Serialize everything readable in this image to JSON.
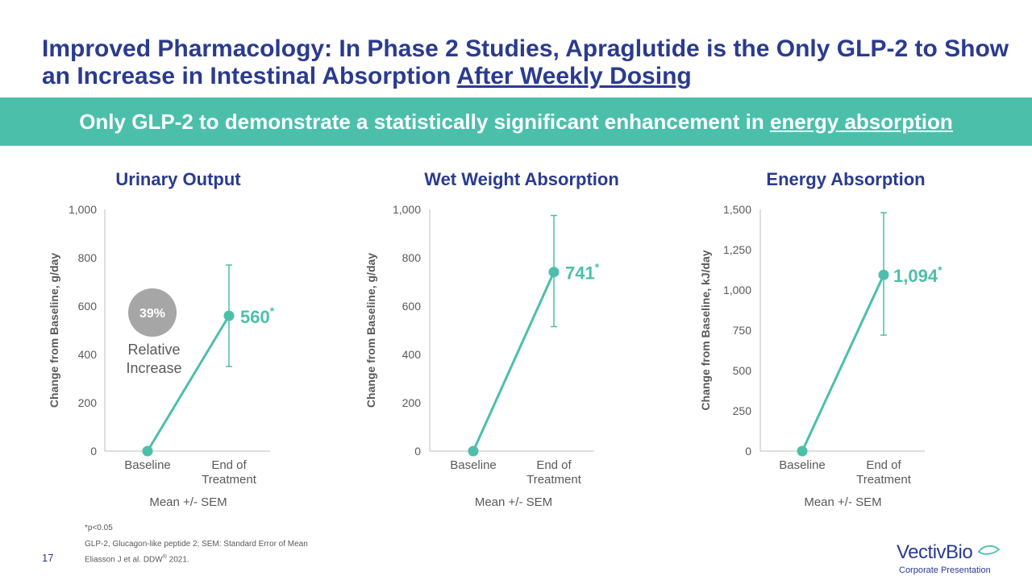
{
  "slide": {
    "title_main": "Improved Pharmacology: In Phase 2 Studies, Apraglutide is the Only GLP-2 to Show an Increase in Intestinal Absorption ",
    "title_underlined": "After Weekly Dosing",
    "banner_main": "Only GLP-2 to demonstrate a statistically significant enhancement in ",
    "banner_underlined": "energy absorption",
    "page_number": "17",
    "footnote_sig": "*p<0.05",
    "footnote_abbrev": "GLP-2, Glucagon-like peptide 2; SEM: Standard Error of Mean",
    "citation_text": "Eliasson J et al. DDW",
    "citation_sup": "®",
    "citation_year": " 2021.",
    "logo_name": "VectivBio",
    "logo_subtitle": "Corporate Presentation"
  },
  "colors": {
    "navy": "#2a3b8f",
    "teal": "#4cbfab",
    "gray_badge": "#a6a6a6",
    "axis_gray": "#595959"
  },
  "chart_data": [
    {
      "type": "line",
      "title": "Urinary Output",
      "ylabel": "Change from Baseline, g/day",
      "xlabel": "Mean +/- SEM",
      "categories": [
        "Baseline",
        "End of Treatment"
      ],
      "values": [
        0,
        560
      ],
      "error_bars": [
        null,
        [
          350,
          770
        ]
      ],
      "ylim": [
        0,
        1000
      ],
      "yticks": [
        0,
        200,
        400,
        600,
        800,
        1000
      ],
      "ytick_labels": [
        "0",
        "200",
        "400",
        "600",
        "800",
        "1,000"
      ],
      "value_label": "560",
      "value_marker": "*",
      "callout": {
        "percent": "39%",
        "line1": "Relative",
        "line2": "Increase"
      }
    },
    {
      "type": "line",
      "title": "Wet Weight Absorption",
      "ylabel": "Change from Baseline, g/day",
      "xlabel": "Mean +/- SEM",
      "categories": [
        "Baseline",
        "End of Treatment"
      ],
      "values": [
        0,
        741
      ],
      "error_bars": [
        null,
        [
          515,
          975
        ]
      ],
      "ylim": [
        0,
        1000
      ],
      "yticks": [
        0,
        200,
        400,
        600,
        800,
        1000
      ],
      "ytick_labels": [
        "0",
        "200",
        "400",
        "600",
        "800",
        "1,000"
      ],
      "value_label": "741",
      "value_marker": "*"
    },
    {
      "type": "line",
      "title": "Energy Absorption",
      "ylabel": "Change from Baseline, kJ/day",
      "xlabel": "Mean +/- SEM",
      "categories": [
        "Baseline",
        "End of Treatment"
      ],
      "values": [
        0,
        1094
      ],
      "error_bars": [
        null,
        [
          720,
          1480
        ]
      ],
      "ylim": [
        0,
        1500
      ],
      "yticks": [
        0,
        250,
        500,
        750,
        1000,
        1250,
        1500
      ],
      "ytick_labels": [
        "0",
        "250",
        "500",
        "750",
        "1,000",
        "1,250",
        "1,500"
      ],
      "value_label": "1,094",
      "value_marker": "*"
    }
  ]
}
